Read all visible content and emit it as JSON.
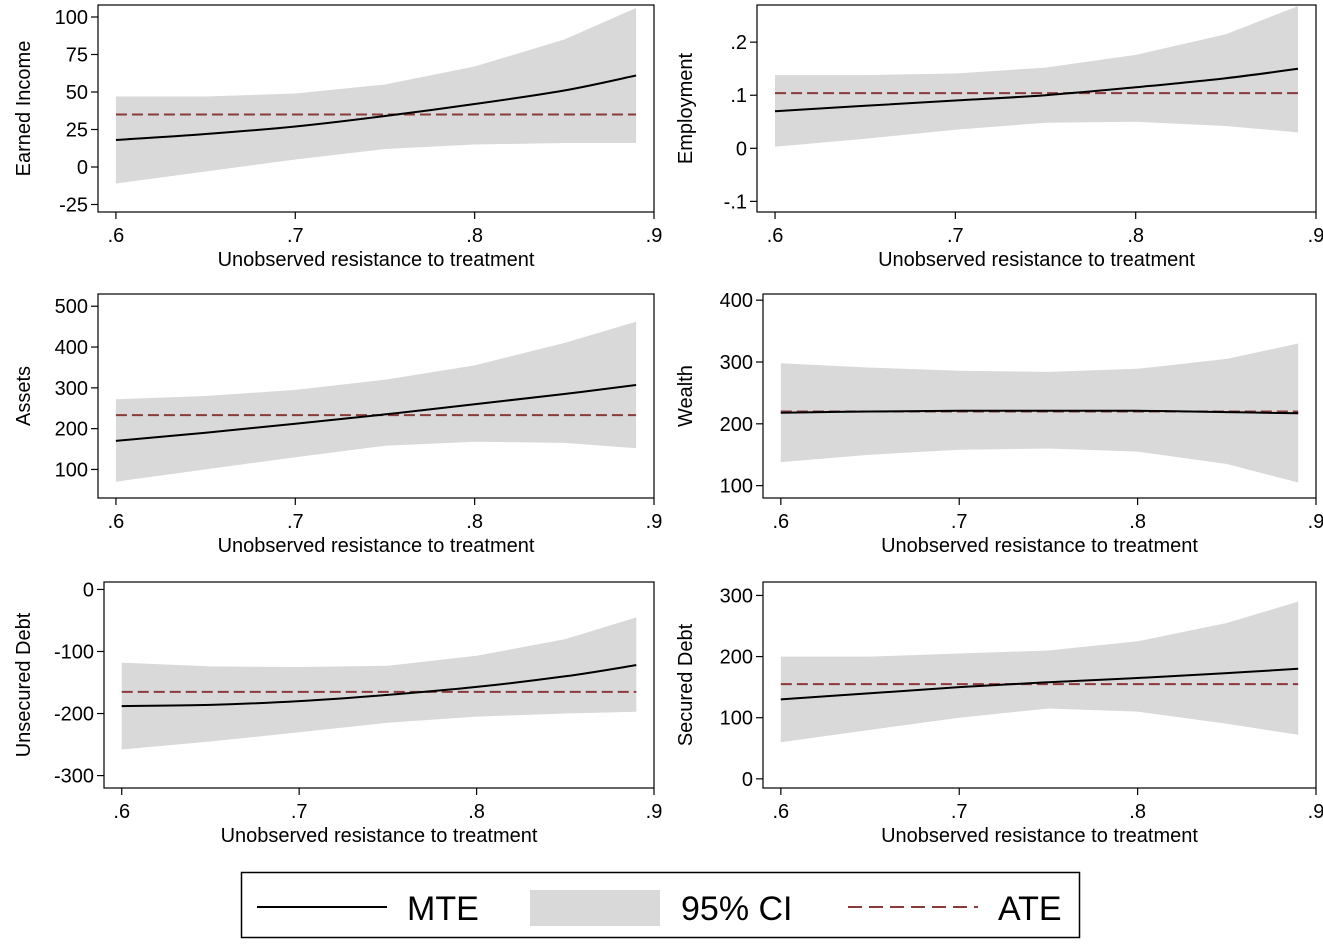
{
  "legend": {
    "items": [
      {
        "label": "MTE",
        "kind": "line",
        "color": "#000000",
        "dash": false
      },
      {
        "label": "95% CI",
        "kind": "band",
        "color": "#d9d9d9"
      },
      {
        "label": "ATE",
        "kind": "line",
        "color": "#8b3a3a",
        "dash": true
      }
    ],
    "placement": "bottom-center"
  },
  "colors": {
    "mte": "#000000",
    "ci": "#d9d9d9",
    "ate": "#8b3a3a",
    "axis": "#000000"
  },
  "chart_data": [
    {
      "type": "line",
      "ylabel": "Earned Income",
      "xlabel": "Unobserved resistance to treatment",
      "xlim": [
        0.59,
        0.9
      ],
      "ylim": [
        -30,
        108
      ],
      "xticks": [
        0.6,
        0.7,
        0.8,
        0.9
      ],
      "xtick_labels": [
        ".6",
        ".7",
        ".8",
        ".9"
      ],
      "yticks": [
        -25,
        0,
        25,
        50,
        75,
        100
      ],
      "ytick_labels": [
        "-25",
        "0",
        "25",
        "50",
        "75",
        "100"
      ],
      "x": [
        0.6,
        0.65,
        0.7,
        0.75,
        0.8,
        0.85,
        0.89
      ],
      "mte": [
        18,
        22,
        27,
        34,
        42,
        51,
        61
      ],
      "ci_lower": [
        -11,
        -3,
        5,
        12,
        15,
        16,
        16
      ],
      "ci_upper": [
        47,
        47,
        49,
        55,
        67,
        85,
        106
      ],
      "ate": 35
    },
    {
      "type": "line",
      "ylabel": "Employment",
      "xlabel": "Unobserved resistance to treatment",
      "xlim": [
        0.59,
        0.9
      ],
      "ylim": [
        -0.12,
        0.27
      ],
      "xticks": [
        0.6,
        0.7,
        0.8,
        0.9
      ],
      "xtick_labels": [
        ".6",
        ".7",
        ".8",
        ".9"
      ],
      "yticks": [
        -0.1,
        0,
        0.1,
        0.2
      ],
      "ytick_labels": [
        "-.1",
        "0",
        ".1",
        ".2"
      ],
      "x": [
        0.6,
        0.65,
        0.7,
        0.75,
        0.8,
        0.85,
        0.89
      ],
      "mte": [
        0.07,
        0.08,
        0.09,
        0.1,
        0.115,
        0.132,
        0.15
      ],
      "ci_lower": [
        0.003,
        0.018,
        0.035,
        0.048,
        0.05,
        0.042,
        0.03
      ],
      "ci_upper": [
        0.138,
        0.138,
        0.141,
        0.152,
        0.176,
        0.215,
        0.268
      ],
      "ate": 0.104
    },
    {
      "type": "line",
      "ylabel": "Assets",
      "xlabel": "Unobserved resistance to treatment",
      "xlim": [
        0.59,
        0.9
      ],
      "ylim": [
        30,
        530
      ],
      "xticks": [
        0.6,
        0.7,
        0.8,
        0.9
      ],
      "xtick_labels": [
        ".6",
        ".7",
        ".8",
        ".9"
      ],
      "yticks": [
        100,
        200,
        300,
        400,
        500
      ],
      "ytick_labels": [
        "100",
        "200",
        "300",
        "400",
        "500"
      ],
      "x": [
        0.6,
        0.65,
        0.7,
        0.75,
        0.8,
        0.85,
        0.89
      ],
      "mte": [
        170,
        190,
        212,
        235,
        260,
        285,
        307
      ],
      "ci_lower": [
        70,
        100,
        130,
        158,
        168,
        165,
        152
      ],
      "ci_upper": [
        272,
        280,
        295,
        320,
        355,
        410,
        462
      ],
      "ate": 233
    },
    {
      "type": "line",
      "ylabel": "Wealth",
      "xlabel": "Unobserved resistance to treatment",
      "xlim": [
        0.59,
        0.9
      ],
      "ylim": [
        80,
        410
      ],
      "xticks": [
        0.6,
        0.7,
        0.8,
        0.9
      ],
      "xtick_labels": [
        ".6",
        ".7",
        ".8",
        ".9"
      ],
      "yticks": [
        100,
        200,
        300,
        400
      ],
      "ytick_labels": [
        "100",
        "200",
        "300",
        "400"
      ],
      "x": [
        0.6,
        0.65,
        0.7,
        0.75,
        0.8,
        0.85,
        0.89
      ],
      "mte": [
        218,
        220,
        221,
        221,
        221,
        219,
        217
      ],
      "ci_lower": [
        138,
        150,
        158,
        160,
        155,
        135,
        105
      ],
      "ci_upper": [
        298,
        291,
        286,
        284,
        289,
        305,
        330
      ],
      "ate": 220
    },
    {
      "type": "line",
      "ylabel": "Unsecured Debt",
      "xlabel": "Unobserved resistance to treatment",
      "xlim": [
        0.59,
        0.9
      ],
      "ylim": [
        -320,
        12
      ],
      "xticks": [
        0.6,
        0.7,
        0.8,
        0.9
      ],
      "xtick_labels": [
        ".6",
        ".7",
        ".8",
        ".9"
      ],
      "yticks": [
        -300,
        -200,
        -100,
        0
      ],
      "ytick_labels": [
        "-300",
        "-200",
        "-100",
        "0"
      ],
      "x": [
        0.6,
        0.65,
        0.7,
        0.75,
        0.8,
        0.85,
        0.89
      ],
      "mte": [
        -188,
        -186,
        -180,
        -170,
        -157,
        -140,
        -122
      ],
      "ci_lower": [
        -258,
        -245,
        -230,
        -215,
        -205,
        -200,
        -197
      ],
      "ci_upper": [
        -118,
        -124,
        -125,
        -123,
        -107,
        -80,
        -45
      ],
      "ate": -165
    },
    {
      "type": "line",
      "ylabel": "Secured Debt",
      "xlabel": "Unobserved resistance to treatment",
      "xlim": [
        0.59,
        0.9
      ],
      "ylim": [
        -15,
        322
      ],
      "xticks": [
        0.6,
        0.7,
        0.8,
        0.9
      ],
      "xtick_labels": [
        ".6",
        ".7",
        ".8",
        ".9"
      ],
      "yticks": [
        0,
        100,
        200,
        300
      ],
      "ytick_labels": [
        "0",
        "100",
        "200",
        "300"
      ],
      "x": [
        0.6,
        0.65,
        0.7,
        0.75,
        0.8,
        0.85,
        0.89
      ],
      "mte": [
        130,
        140,
        150,
        158,
        165,
        173,
        180
      ],
      "ci_lower": [
        60,
        80,
        100,
        115,
        110,
        90,
        72
      ],
      "ci_upper": [
        200,
        200,
        205,
        210,
        225,
        255,
        290
      ],
      "ate": 155
    }
  ]
}
